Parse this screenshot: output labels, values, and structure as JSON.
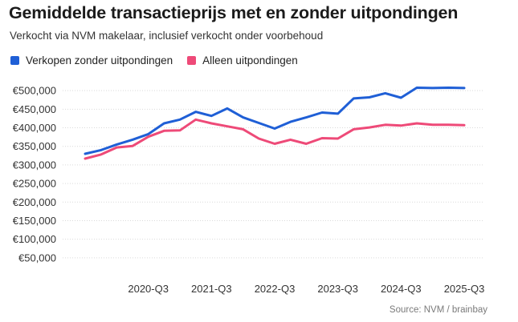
{
  "header": {
    "title": "Gemiddelde transactieprijs met en zonder uitpondingen",
    "subtitle": "Verkocht via NVM makelaar, inclusief verkocht onder voorbehoud"
  },
  "legend": [
    {
      "label": "Verkopen zonder uitpondingen",
      "color": "#1f5fd6"
    },
    {
      "label": "Alleen uitpondingen",
      "color": "#ee4a78"
    }
  ],
  "footer": {
    "source": "Source: NVM / brainbay"
  },
  "chart_data": {
    "type": "line",
    "ylim": [
      0,
      550000
    ],
    "yticks": [
      50000,
      100000,
      150000,
      200000,
      250000,
      300000,
      350000,
      400000,
      450000,
      500000
    ],
    "ytick_labels": [
      "€50,000",
      "€100,000",
      "€150,000",
      "€200,000",
      "€250,000",
      "€300,000",
      "€350,000",
      "€400,000",
      "€450,000",
      "€500,000"
    ],
    "x": [
      "2019-Q3",
      "2019-Q4",
      "2020-Q1",
      "2020-Q2",
      "2020-Q3",
      "2020-Q4",
      "2021-Q1",
      "2021-Q2",
      "2021-Q3",
      "2021-Q4",
      "2022-Q1",
      "2022-Q2",
      "2022-Q3",
      "2022-Q4",
      "2023-Q1",
      "2023-Q2",
      "2023-Q3",
      "2023-Q4",
      "2024-Q1",
      "2024-Q2",
      "2024-Q3",
      "2024-Q4",
      "2025-Q1",
      "2025-Q2",
      "2025-Q3"
    ],
    "xticks": [
      "2020-Q3",
      "2021-Q3",
      "2022-Q3",
      "2023-Q3",
      "2024-Q3",
      "2025-Q3"
    ],
    "grid": true,
    "series": [
      {
        "name": "Verkopen zonder uitpondingen",
        "color": "#1f5fd6",
        "values": [
          330000,
          340000,
          355000,
          368000,
          383000,
          412000,
          422000,
          443000,
          432000,
          452000,
          428000,
          413000,
          398000,
          416000,
          428000,
          441000,
          438000,
          479000,
          482000,
          493000,
          481000,
          508000,
          507000,
          508000,
          507000
        ]
      },
      {
        "name": "Alleen uitpondingen",
        "color": "#ee4a78",
        "values": [
          317000,
          328000,
          347000,
          351000,
          376000,
          392000,
          393000,
          422000,
          412000,
          404000,
          396000,
          371000,
          357000,
          368000,
          357000,
          372000,
          371000,
          396000,
          401000,
          408000,
          406000,
          412000,
          408000,
          408000,
          407000
        ]
      }
    ]
  }
}
